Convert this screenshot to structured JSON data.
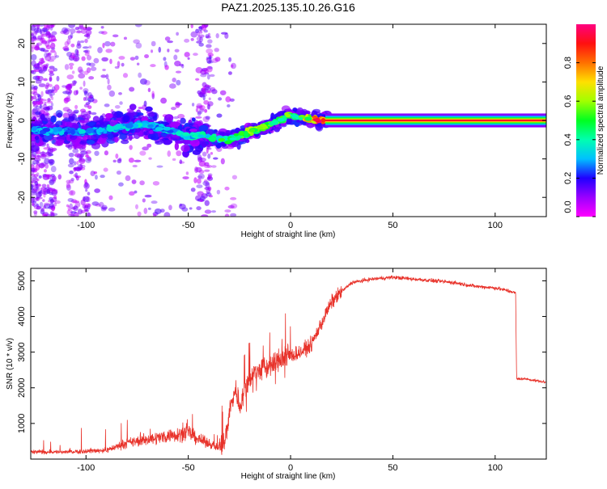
{
  "title": "PAZ1.2025.135.10.26.G16",
  "colorbar": {
    "label": "Normalized spectral amplitude",
    "ticks": [
      "0.0",
      "0.2",
      "0.4",
      "0.6",
      "0.8"
    ],
    "tick_values": [
      0.0,
      0.2,
      0.4,
      0.6,
      0.8
    ],
    "range": [
      0,
      1
    ]
  },
  "chart_data": [
    {
      "type": "heatmap",
      "xlabel": "Height of straight line (km)",
      "ylabel": "Frequency (Hz)",
      "xlim": [
        -127,
        125
      ],
      "ylim": [
        -25,
        25
      ],
      "xticks": [
        -100,
        -50,
        0,
        50,
        100
      ],
      "xtick_labels": [
        "-100",
        "-50",
        "0",
        "50",
        "100"
      ],
      "yticks": [
        -20,
        -10,
        0,
        10,
        20
      ],
      "ytick_labels": [
        "-20",
        "-10",
        "0",
        "10",
        "20"
      ],
      "grid": false,
      "ridge": {
        "x": [
          -127,
          -110,
          -100,
          -90,
          -80,
          -70,
          -60,
          -50,
          -40,
          -35,
          -30,
          -25,
          -20,
          -15,
          -10,
          -5,
          0,
          5,
          10,
          15,
          20,
          40,
          60,
          80,
          100,
          125
        ],
        "frequency": [
          -2.5,
          -3,
          -3,
          -2.5,
          -1.5,
          -1,
          -2.5,
          -4,
          -4,
          -5,
          -5,
          -4,
          -3,
          -2,
          -1,
          0,
          1.5,
          0.5,
          0.5,
          0,
          0,
          0,
          0,
          0,
          0,
          0
        ],
        "amplitude": [
          0.3,
          0.3,
          0.3,
          0.3,
          0.35,
          0.3,
          0.3,
          0.35,
          0.4,
          0.45,
          0.45,
          0.5,
          0.55,
          0.55,
          0.5,
          0.5,
          0.5,
          0.55,
          0.7,
          0.9,
          0.95,
          0.95,
          0.95,
          0.95,
          0.95,
          0.95
        ]
      }
    },
    {
      "type": "line",
      "xlabel": "Height of straight line (km)",
      "ylabel": "SNR (10 * v/v)",
      "xlim": [
        -127,
        125
      ],
      "ylim": [
        0,
        5350
      ],
      "xticks": [
        -100,
        -50,
        0,
        50,
        100
      ],
      "xtick_labels": [
        "-100",
        "-50",
        "0",
        "50",
        "100"
      ],
      "yticks": [
        1000,
        2000,
        3000,
        4000,
        5000
      ],
      "ytick_labels": [
        "1000",
        "2000",
        "3000",
        "4000",
        "5000"
      ],
      "color": "#e8322a",
      "grid": false,
      "envelope": {
        "x": [
          -127,
          -110,
          -90,
          -80,
          -70,
          -60,
          -50,
          -45,
          -40,
          -35,
          -32,
          -30,
          -27,
          -25,
          -20,
          -15,
          -10,
          -5,
          0,
          5,
          10,
          15,
          20,
          25,
          30,
          40,
          50,
          60,
          70,
          80,
          90,
          100,
          108,
          110,
          110.5,
          115,
          120,
          125
        ],
        "snr": [
          200,
          200,
          250,
          450,
          550,
          650,
          750,
          550,
          450,
          300,
          500,
          1300,
          2000,
          1500,
          2300,
          2500,
          2600,
          2800,
          2900,
          3000,
          3200,
          3800,
          4400,
          4700,
          4950,
          5050,
          5100,
          5050,
          5000,
          4950,
          4850,
          4800,
          4700,
          4650,
          2250,
          2250,
          2200,
          2150
        ]
      }
    }
  ]
}
